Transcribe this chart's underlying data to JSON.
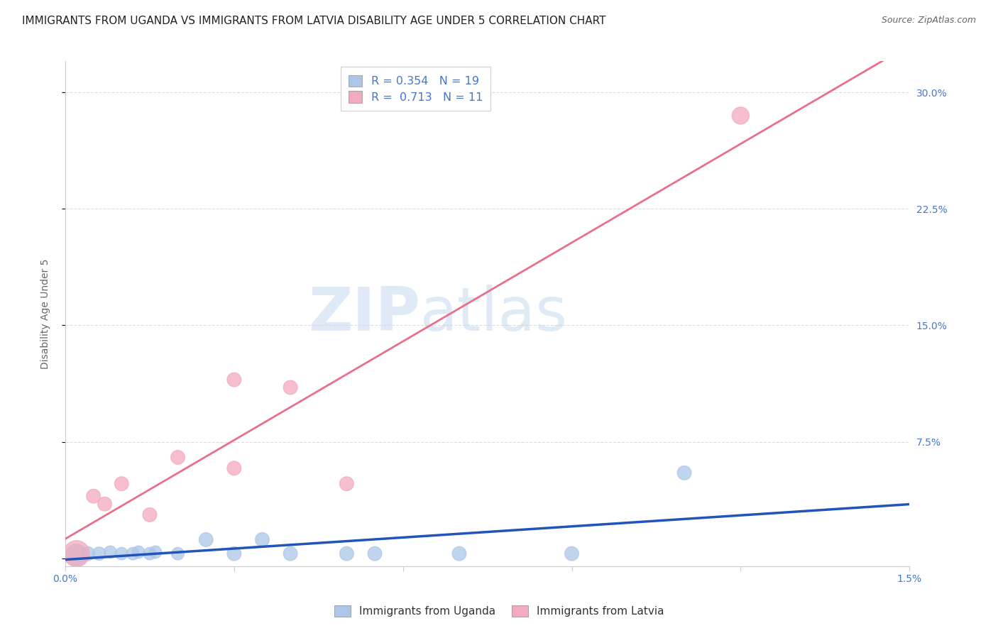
{
  "title": "IMMIGRANTS FROM UGANDA VS IMMIGRANTS FROM LATVIA DISABILITY AGE UNDER 5 CORRELATION CHART",
  "source": "Source: ZipAtlas.com",
  "ylabel": "Disability Age Under 5",
  "xlim": [
    0.0,
    0.015
  ],
  "ylim": [
    -0.005,
    0.32
  ],
  "watermark_zip": "ZIP",
  "watermark_atlas": "atlas",
  "legend_r_uganda": "R = 0.354",
  "legend_n_uganda": "N = 19",
  "legend_r_latvia": "R =  0.713",
  "legend_n_latvia": "N = 11",
  "legend_label_uganda": "Immigrants from Uganda",
  "legend_label_latvia": "Immigrants from Latvia",
  "uganda_color": "#adc6e8",
  "latvia_color": "#f2aabe",
  "uganda_line_color": "#2255bb",
  "latvia_line_color": "#e8708a",
  "uganda_points": [
    [
      0.0002,
      0.002
    ],
    [
      0.0004,
      0.003
    ],
    [
      0.0006,
      0.003
    ],
    [
      0.0008,
      0.004
    ],
    [
      0.001,
      0.003
    ],
    [
      0.0012,
      0.003
    ],
    [
      0.0013,
      0.004
    ],
    [
      0.0015,
      0.003
    ],
    [
      0.0016,
      0.004
    ],
    [
      0.002,
      0.003
    ],
    [
      0.0025,
      0.012
    ],
    [
      0.003,
      0.003
    ],
    [
      0.0035,
      0.012
    ],
    [
      0.004,
      0.003
    ],
    [
      0.005,
      0.003
    ],
    [
      0.0055,
      0.003
    ],
    [
      0.007,
      0.003
    ],
    [
      0.009,
      0.003
    ],
    [
      0.011,
      0.055
    ]
  ],
  "latvia_points": [
    [
      0.0002,
      0.003
    ],
    [
      0.0005,
      0.04
    ],
    [
      0.0007,
      0.035
    ],
    [
      0.001,
      0.048
    ],
    [
      0.0015,
      0.028
    ],
    [
      0.002,
      0.065
    ],
    [
      0.003,
      0.115
    ],
    [
      0.003,
      0.058
    ],
    [
      0.004,
      0.11
    ],
    [
      0.005,
      0.048
    ],
    [
      0.012,
      0.285
    ]
  ],
  "uganda_scatter_sizes": [
    500,
    200,
    180,
    160,
    160,
    160,
    160,
    160,
    160,
    160,
    200,
    200,
    200,
    200,
    200,
    200,
    200,
    200,
    200
  ],
  "latvia_scatter_sizes": [
    700,
    200,
    200,
    200,
    200,
    200,
    200,
    200,
    200,
    200,
    300
  ],
  "title_fontsize": 11,
  "axis_label_fontsize": 10,
  "tick_fontsize": 10,
  "source_fontsize": 9,
  "background_color": "#ffffff",
  "grid_color": "#dddddd",
  "title_color": "#222222",
  "axis_tick_color": "#4477cc",
  "ylabel_color": "#666666"
}
